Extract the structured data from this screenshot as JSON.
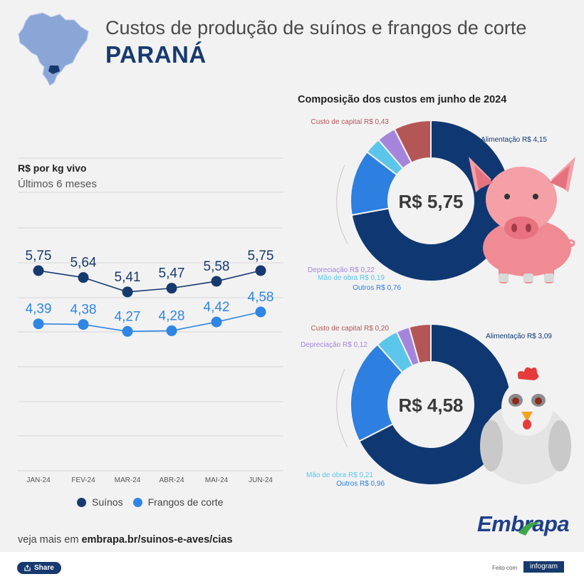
{
  "header": {
    "title": "Custos de produção de suínos e frangos de corte",
    "state": "PARANÁ"
  },
  "left_chart": {
    "unit": "R$ por kg vivo",
    "period": "Últimos 6 meses"
  },
  "composition_title": "Composição dos custos em junho de 2024",
  "footer": {
    "prefix": "veja mais em",
    "link": "embrapa.br/suinos-e-aves/cias",
    "brand": "Embrapa",
    "share": "Share",
    "made_with": "Feito com",
    "infogram": "infogram"
  },
  "colors": {
    "suinos": "#173a6e",
    "frangos": "#2f86e3",
    "alimentacao": "#0f3872",
    "custo_capital": "#b55656",
    "depreciacao": "#a585dc",
    "mao_de_obra": "#5cc6ea",
    "outros": "#2d7fe0"
  },
  "chart_data": [
    {
      "type": "line",
      "categories": [
        "JAN-24",
        "FEV-24",
        "MAR-24",
        "ABR-24",
        "MAI-24",
        "JUN-24"
      ],
      "series": [
        {
          "name": "Suínos",
          "values": [
            5.75,
            5.64,
            5.41,
            5.47,
            5.58,
            5.75
          ],
          "labels": [
            "5,75",
            "5,64",
            "5,41",
            "5,47",
            "5,58",
            "5,75"
          ]
        },
        {
          "name": "Frangos de corte",
          "values": [
            4.39,
            4.38,
            4.27,
            4.28,
            4.42,
            4.58
          ],
          "labels": [
            "4,39",
            "4,38",
            "4,27",
            "4,28",
            "4,42",
            "4,58"
          ]
        }
      ],
      "grid": true,
      "legend": "bottom"
    },
    {
      "type": "pie",
      "center_label": "R$ 5,75",
      "slices": [
        {
          "name": "Alimentação",
          "value": 4.15,
          "label": "Alimentação R$ 4,15"
        },
        {
          "name": "Outros",
          "value": 0.76,
          "label": "Outros R$ 0,76"
        },
        {
          "name": "Mão de obra",
          "value": 0.19,
          "label": "Mão de obra R$ 0,19"
        },
        {
          "name": "Depreciação",
          "value": 0.22,
          "label": "Depreciação R$ 0,22"
        },
        {
          "name": "Custo de capital",
          "value": 0.43,
          "label": "Custo de capital R$ 0,43"
        }
      ]
    },
    {
      "type": "pie",
      "center_label": "R$ 4,58",
      "slices": [
        {
          "name": "Alimentação",
          "value": 3.09,
          "label": "Alimentação R$ 3,09"
        },
        {
          "name": "Outros",
          "value": 0.96,
          "label": "Outros R$ 0,96"
        },
        {
          "name": "Mão de obra",
          "value": 0.21,
          "label": "Mão de obra R$ 0,21"
        },
        {
          "name": "Depreciação",
          "value": 0.12,
          "label": "Depreciação R$ 0,12"
        },
        {
          "name": "Custo de capital",
          "value": 0.2,
          "label": "Custo de capital R$ 0,20"
        }
      ]
    }
  ]
}
